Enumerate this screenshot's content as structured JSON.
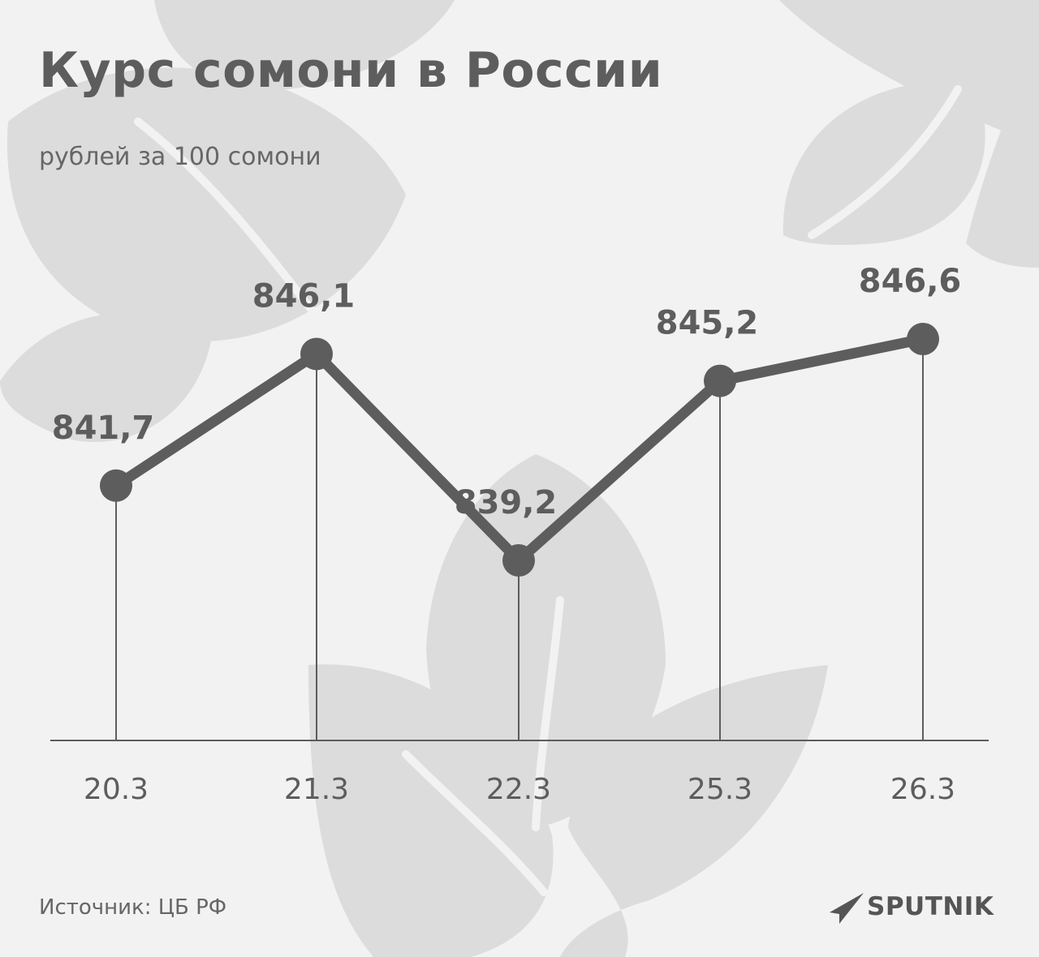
{
  "title": "Курс сомони в России",
  "subtitle": "рублей за 100 сомони",
  "source": "Источник: ЦБ РФ",
  "brand": {
    "name": "SPUTNIK",
    "icon": "paper-plane-icon"
  },
  "colors": {
    "background": "#f2f2f2",
    "leaves": "#dcdcdc",
    "line": "#5d5d5d",
    "text": "#5d5d5d"
  },
  "chart_data": {
    "type": "line",
    "x": [
      "20.3",
      "21.3",
      "22.3",
      "25.3",
      "26.3"
    ],
    "series": [
      {
        "values": [
          841.7,
          846.1,
          839.2,
          845.2,
          846.6
        ],
        "labels": [
          "841,7",
          "846,1",
          "839,2",
          "845,2",
          "846,6"
        ]
      }
    ],
    "title": "Курс сомони в России",
    "subtitle": "рублей за 100 сомони",
    "ylim": [
      839.2,
      846.6
    ],
    "grid": false,
    "legend": "none"
  }
}
